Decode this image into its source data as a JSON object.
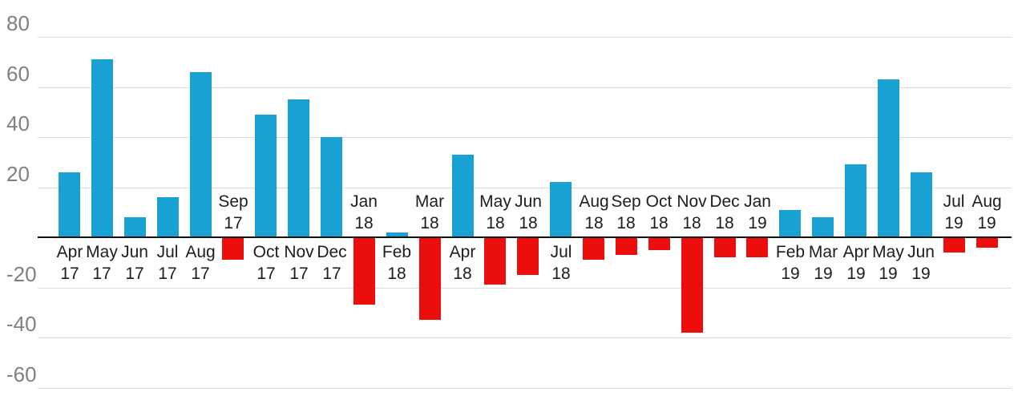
{
  "chart_data": {
    "type": "bar",
    "title": "",
    "xlabel": "",
    "ylabel": "",
    "ylim": [
      -60,
      80
    ],
    "grid": true,
    "legend": false,
    "baseline": 0,
    "yticks": [
      "80",
      "60",
      "40",
      "20",
      "-20",
      "-40",
      "-60"
    ],
    "ytick_values": [
      80,
      60,
      40,
      20,
      -20,
      -40,
      -60
    ],
    "categories": [
      "Apr 17",
      "May 17",
      "Jun 17",
      "Jul 17",
      "Aug 17",
      "Sep 17",
      "Oct 17",
      "Nov 17",
      "Dec 17",
      "Jan 18",
      "Feb 18",
      "Mar 18",
      "Apr 18",
      "May 18",
      "Jun 18",
      "Jul 18",
      "Aug 18",
      "Sep 18",
      "Oct 18",
      "Nov 18",
      "Dec 18",
      "Jan 19",
      "Feb 19",
      "Mar 19",
      "Apr 19",
      "May 19",
      "Jun 19",
      "Jul 19",
      "Aug 19"
    ],
    "values": [
      26,
      71,
      8,
      16,
      66,
      -9,
      49,
      55,
      40,
      -27,
      2,
      -33,
      33,
      -19,
      -15,
      22,
      -9,
      -7,
      -5,
      -38,
      -8,
      -8,
      11,
      8,
      29,
      63,
      26,
      -6,
      -4
    ],
    "positive_color": "#18a1d2",
    "negative_color": "#ec0d0d",
    "label_rule": "category labels sit below axis for positive bars, above axis for negative bars"
  },
  "colors": {
    "background": "#ffffff",
    "gridline": "#dadada",
    "axis_line": "#111111",
    "axis_label": "#808080",
    "category_label": "#1d1d1d"
  }
}
